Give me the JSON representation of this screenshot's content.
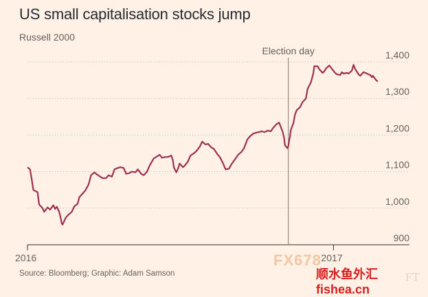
{
  "title": "US small capitalisation stocks jump",
  "subtitle": "Russell 2000",
  "source": "Source: Bloomberg; Graphic: Adam Samson",
  "watermark": {
    "logo_text": "FX678",
    "site_text": "顺水鱼外汇fishea.cn",
    "ft_mark": "FT"
  },
  "colors": {
    "background": "#fff1e5",
    "line": "#9e2f50",
    "grid": "#b9b3ac",
    "axis_text": "#66605c"
  },
  "chart_data": {
    "type": "line",
    "title": "US small capitalisation stocks jump",
    "subtitle": "Russell 2000",
    "xlabel": "",
    "ylabel": "",
    "ylim": [
      900,
      1400
    ],
    "xlim": [
      "2016-01-01",
      "2017-02-28"
    ],
    "yticks": [
      900,
      1000,
      1100,
      1200,
      1300,
      1400
    ],
    "ytick_labels": [
      "900",
      "1,000",
      "1,100",
      "1,200",
      "1,300",
      "1,400"
    ],
    "xticks": [
      {
        "date": "2016-01-01",
        "label": "2016"
      },
      {
        "date": "2017-01-01",
        "label": "2017"
      }
    ],
    "grid": "horizontal dotted",
    "annotations": [
      {
        "date": "2016-11-08",
        "label": "Election day"
      }
    ],
    "series": [
      {
        "points": [
          [
            "2016-01-01",
            1112
          ],
          [
            "2016-01-04",
            1106
          ],
          [
            "2016-01-06",
            1080
          ],
          [
            "2016-01-08",
            1050
          ],
          [
            "2016-01-11",
            1046
          ],
          [
            "2016-01-13",
            1044
          ],
          [
            "2016-01-15",
            1010
          ],
          [
            "2016-01-19",
            1000
          ],
          [
            "2016-01-21",
            990
          ],
          [
            "2016-01-25",
            1002
          ],
          [
            "2016-01-28",
            996
          ],
          [
            "2016-02-01",
            1008
          ],
          [
            "2016-02-03",
            998
          ],
          [
            "2016-02-05",
            1004
          ],
          [
            "2016-02-08",
            990
          ],
          [
            "2016-02-10",
            970
          ],
          [
            "2016-02-11",
            958
          ],
          [
            "2016-02-12",
            955
          ],
          [
            "2016-02-16",
            975
          ],
          [
            "2016-02-19",
            982
          ],
          [
            "2016-02-23",
            990
          ],
          [
            "2016-02-26",
            1005
          ],
          [
            "2016-03-01",
            1012
          ],
          [
            "2016-03-03",
            1030
          ],
          [
            "2016-03-07",
            1040
          ],
          [
            "2016-03-10",
            1048
          ],
          [
            "2016-03-14",
            1064
          ],
          [
            "2016-03-17",
            1090
          ],
          [
            "2016-03-21",
            1098
          ],
          [
            "2016-03-23",
            1094
          ],
          [
            "2016-03-28",
            1086
          ],
          [
            "2016-03-31",
            1082
          ],
          [
            "2016-04-04",
            1082
          ],
          [
            "2016-04-07",
            1090
          ],
          [
            "2016-04-11",
            1086
          ],
          [
            "2016-04-14",
            1106
          ],
          [
            "2016-04-18",
            1110
          ],
          [
            "2016-04-21",
            1112
          ],
          [
            "2016-04-25",
            1110
          ],
          [
            "2016-04-28",
            1094
          ],
          [
            "2016-05-02",
            1096
          ],
          [
            "2016-05-05",
            1100
          ],
          [
            "2016-05-09",
            1098
          ],
          [
            "2016-05-12",
            1106
          ],
          [
            "2016-05-16",
            1094
          ],
          [
            "2016-05-19",
            1090
          ],
          [
            "2016-05-23",
            1100
          ],
          [
            "2016-05-26",
            1116
          ],
          [
            "2016-05-31",
            1136
          ],
          [
            "2016-06-03",
            1140
          ],
          [
            "2016-06-07",
            1146
          ],
          [
            "2016-06-10",
            1138
          ],
          [
            "2016-06-14",
            1140
          ],
          [
            "2016-06-17",
            1140
          ],
          [
            "2016-06-21",
            1144
          ],
          [
            "2016-06-23",
            1130
          ],
          [
            "2016-06-24",
            1112
          ],
          [
            "2016-06-27",
            1098
          ],
          [
            "2016-06-29",
            1108
          ],
          [
            "2016-07-01",
            1122
          ],
          [
            "2016-07-05",
            1112
          ],
          [
            "2016-07-07",
            1116
          ],
          [
            "2016-07-11",
            1128
          ],
          [
            "2016-07-14",
            1144
          ],
          [
            "2016-07-18",
            1150
          ],
          [
            "2016-07-21",
            1156
          ],
          [
            "2016-07-25",
            1168
          ],
          [
            "2016-07-28",
            1182
          ],
          [
            "2016-08-01",
            1174
          ],
          [
            "2016-08-04",
            1176
          ],
          [
            "2016-08-08",
            1166
          ],
          [
            "2016-08-11",
            1162
          ],
          [
            "2016-08-15",
            1148
          ],
          [
            "2016-08-18",
            1140
          ],
          [
            "2016-08-22",
            1122
          ],
          [
            "2016-08-25",
            1106
          ],
          [
            "2016-08-29",
            1108
          ],
          [
            "2016-09-01",
            1120
          ],
          [
            "2016-09-06",
            1136
          ],
          [
            "2016-09-09",
            1146
          ],
          [
            "2016-09-13",
            1154
          ],
          [
            "2016-09-16",
            1164
          ],
          [
            "2016-09-20",
            1188
          ],
          [
            "2016-09-23",
            1196
          ],
          [
            "2016-09-27",
            1204
          ],
          [
            "2016-09-30",
            1206
          ],
          [
            "2016-10-04",
            1208
          ],
          [
            "2016-10-07",
            1210
          ],
          [
            "2016-10-11",
            1208
          ],
          [
            "2016-10-14",
            1212
          ],
          [
            "2016-10-18",
            1210
          ],
          [
            "2016-10-21",
            1220
          ],
          [
            "2016-10-25",
            1230
          ],
          [
            "2016-10-28",
            1234
          ],
          [
            "2016-11-01",
            1210
          ],
          [
            "2016-11-03",
            1192
          ],
          [
            "2016-11-04",
            1172
          ],
          [
            "2016-11-07",
            1164
          ],
          [
            "2016-11-08",
            1170
          ],
          [
            "2016-11-09",
            1184
          ],
          [
            "2016-11-10",
            1196
          ],
          [
            "2016-11-11",
            1214
          ],
          [
            "2016-11-14",
            1232
          ],
          [
            "2016-11-16",
            1256
          ],
          [
            "2016-11-18",
            1268
          ],
          [
            "2016-11-22",
            1276
          ],
          [
            "2016-11-25",
            1290
          ],
          [
            "2016-11-29",
            1300
          ],
          [
            "2016-12-01",
            1326
          ],
          [
            "2016-12-05",
            1344
          ],
          [
            "2016-12-08",
            1370
          ],
          [
            "2016-12-09",
            1388
          ],
          [
            "2016-12-13",
            1388
          ],
          [
            "2016-12-15",
            1380
          ],
          [
            "2016-12-19",
            1370
          ],
          [
            "2016-12-21",
            1374
          ],
          [
            "2016-12-23",
            1382
          ],
          [
            "2016-12-27",
            1390
          ],
          [
            "2016-12-29",
            1384
          ],
          [
            "2017-01-03",
            1370
          ],
          [
            "2017-01-05",
            1366
          ],
          [
            "2017-01-09",
            1364
          ],
          [
            "2017-01-11",
            1372
          ],
          [
            "2017-01-13",
            1368
          ],
          [
            "2017-01-17",
            1370
          ],
          [
            "2017-01-19",
            1368
          ],
          [
            "2017-01-23",
            1376
          ],
          [
            "2017-01-25",
            1392
          ],
          [
            "2017-01-27",
            1380
          ],
          [
            "2017-01-31",
            1366
          ],
          [
            "2017-02-02",
            1362
          ],
          [
            "2017-02-06",
            1372
          ],
          [
            "2017-02-08",
            1370
          ],
          [
            "2017-02-10",
            1368
          ],
          [
            "2017-02-14",
            1364
          ],
          [
            "2017-02-16",
            1358
          ],
          [
            "2017-02-17",
            1362
          ],
          [
            "2017-02-21",
            1350
          ],
          [
            "2017-02-23",
            1346
          ]
        ]
      }
    ]
  }
}
